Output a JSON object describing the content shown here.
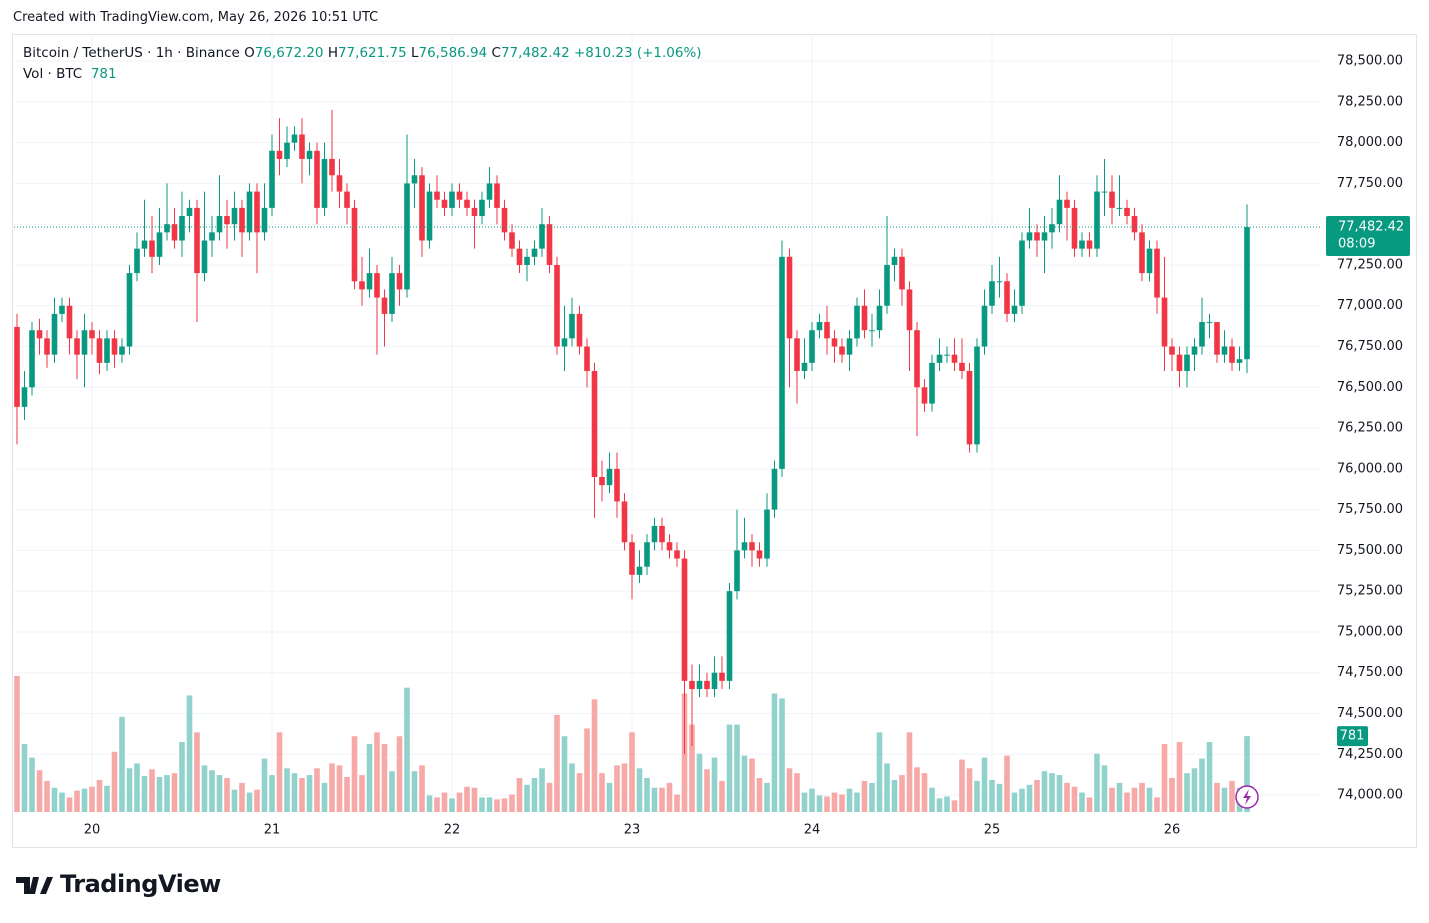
{
  "watermark": "Created with TradingView.com, May 26, 2026 10:51 UTC",
  "brand": "TradingView",
  "chart_data": {
    "type": "candlestick",
    "symbol": "Bitcoin / TetherUS · 1h · Binance",
    "ohlc_legend": [
      {
        "prefix": "O",
        "value": 76672.2,
        "label": "76,672.20"
      },
      {
        "prefix": "H",
        "value": 77621.75,
        "label": "77,621.75"
      },
      {
        "prefix": "L",
        "value": 76586.94,
        "label": "76,586.94"
      },
      {
        "prefix": "C",
        "value": 77482.42,
        "label": "77,482.42"
      }
    ],
    "change": {
      "value": 810.23,
      "label": "+810.23 (+1.06%)"
    },
    "volume_legend": "Vol · BTC",
    "last_price": {
      "value": 77482.42,
      "label": "77,482.42"
    },
    "countdown": "08:09",
    "up_color": "#089981",
    "down_color": "#f23645",
    "volume_up_color": "#92d2cc",
    "volume_down_color": "#f7a9a7",
    "grid": true,
    "ylim": [
      73896,
      78660
    ],
    "yticks": [
      {
        "value": 74000,
        "label": "74,000.00"
      },
      {
        "value": 74250,
        "label": "74,250.00"
      },
      {
        "value": 74500,
        "label": "74,500.00"
      },
      {
        "value": 74750,
        "label": "74,750.00"
      },
      {
        "value": 75000,
        "label": "75,000.00"
      },
      {
        "value": 75250,
        "label": "75,250.00"
      },
      {
        "value": 75500,
        "label": "75,500.00"
      },
      {
        "value": 75750,
        "label": "75,750.00"
      },
      {
        "value": 76000,
        "label": "76,000.00"
      },
      {
        "value": 76250,
        "label": "76,250.00"
      },
      {
        "value": 76500,
        "label": "76,500.00"
      },
      {
        "value": 76750,
        "label": "76,750.00"
      },
      {
        "value": 77000,
        "label": "77,000.00"
      },
      {
        "value": 77250,
        "label": "77,250.00"
      },
      {
        "value": 77500,
        "label": "77,500.00"
      },
      {
        "value": 77750,
        "label": "77,750.00"
      },
      {
        "value": 78000,
        "label": "78,000.00"
      },
      {
        "value": 78250,
        "label": "78,250.00"
      },
      {
        "value": 78500,
        "label": "78,500.00"
      }
    ],
    "categories": [
      null,
      null,
      null,
      null,
      null,
      null,
      null,
      null,
      null,
      null,
      "20",
      null,
      null,
      null,
      null,
      null,
      null,
      null,
      null,
      null,
      null,
      null,
      null,
      null,
      null,
      null,
      null,
      null,
      null,
      null,
      null,
      null,
      null,
      null,
      "21",
      null,
      null,
      null,
      null,
      null,
      null,
      null,
      null,
      null,
      null,
      null,
      null,
      null,
      null,
      null,
      null,
      null,
      null,
      null,
      null,
      null,
      null,
      null,
      "22",
      null,
      null,
      null,
      null,
      null,
      null,
      null,
      null,
      null,
      null,
      null,
      null,
      null,
      null,
      null,
      null,
      null,
      null,
      null,
      null,
      null,
      null,
      null,
      "23",
      null,
      null,
      null,
      null,
      null,
      null,
      null,
      null,
      null,
      null,
      null,
      null,
      null,
      null,
      null,
      null,
      null,
      null,
      null,
      null,
      null,
      null,
      null,
      "24",
      null,
      null,
      null,
      null,
      null,
      null,
      null,
      null,
      null,
      null,
      null,
      null,
      null,
      null,
      null,
      null,
      null,
      null,
      null,
      null,
      null,
      null,
      null,
      "25",
      null,
      null,
      null,
      null,
      null,
      null,
      null,
      null,
      null,
      null,
      null,
      null,
      null,
      null,
      null,
      null,
      null,
      null,
      null,
      null,
      null,
      null,
      null,
      "26",
      null,
      null,
      null,
      null,
      null,
      null,
      null,
      null,
      null,
      null
    ],
    "open": [
      76870,
      76380,
      76500,
      76850,
      76800,
      76700,
      76950,
      77000,
      76800,
      76700,
      76850,
      76800,
      76650,
      76800,
      76700,
      76750,
      77200,
      77350,
      77400,
      77300,
      77450,
      77500,
      77400,
      77550,
      77600,
      77200,
      77400,
      77450,
      77550,
      77500,
      77600,
      77450,
      77700,
      77450,
      77600,
      77950,
      77900,
      78000,
      78050,
      77900,
      77950,
      77600,
      77900,
      77800,
      77700,
      77600,
      77150,
      77100,
      77200,
      77050,
      76950,
      77200,
      77100,
      77750,
      77800,
      77400,
      77700,
      77650,
      77600,
      77700,
      77650,
      77600,
      77550,
      77650,
      77750,
      77600,
      77450,
      77350,
      77250,
      77300,
      77350,
      77500,
      77250,
      76750,
      76800,
      76950,
      76750,
      76600,
      75950,
      75900,
      76000,
      75800,
      75550,
      75350,
      75400,
      75550,
      75650,
      75550,
      75500,
      75450,
      74700,
      74650,
      74700,
      74650,
      74750,
      74700,
      75250,
      75500,
      75550,
      75500,
      75450,
      75750,
      76000,
      77300,
      76800,
      76600,
      76650,
      76850,
      76900,
      76800,
      76750,
      76700,
      76800,
      77000,
      76850,
      76850,
      77000,
      77250,
      77300,
      77100,
      76850,
      76500,
      76400,
      76650,
      76700,
      76700,
      76650,
      76600,
      76150,
      76750,
      77000,
      77150,
      77150,
      76950,
      77000,
      77400,
      77450,
      77400,
      77450,
      77500,
      77650,
      77600,
      77350,
      77400,
      77350,
      77700,
      77700,
      77600,
      77600,
      77550,
      77450,
      77200,
      77350,
      77050,
      76750,
      76700,
      76600,
      76700,
      76750,
      76900,
      76900,
      76700,
      76750,
      76650,
      76672.2
    ],
    "high": [
      76950,
      76600,
      76900,
      76920,
      76850,
      77050,
      77050,
      77050,
      76850,
      76950,
      76900,
      76850,
      76850,
      76850,
      76800,
      77250,
      77450,
      77650,
      77550,
      77600,
      77750,
      77600,
      77700,
      77650,
      77650,
      77700,
      77550,
      77800,
      77650,
      77700,
      77650,
      77750,
      77750,
      77750,
      78050,
      78150,
      78100,
      78100,
      78150,
      78000,
      78000,
      78000,
      78200,
      77900,
      77750,
      77650,
      77300,
      77350,
      77250,
      77100,
      77300,
      77250,
      78050,
      77900,
      77850,
      77750,
      77800,
      77700,
      77750,
      77750,
      77700,
      77650,
      77700,
      77850,
      77800,
      77650,
      77500,
      77400,
      77350,
      77400,
      77600,
      77550,
      77300,
      77000,
      77050,
      77000,
      76800,
      76650,
      76050,
      76100,
      76100,
      75850,
      75600,
      75500,
      75600,
      75700,
      75700,
      75600,
      75550,
      75500,
      74800,
      74800,
      74750,
      74850,
      74850,
      75300,
      75750,
      75700,
      75600,
      75550,
      75850,
      76050,
      77400,
      77350,
      76850,
      76800,
      76900,
      76950,
      77000,
      76850,
      76800,
      76850,
      77050,
      77100,
      76950,
      77100,
      77550,
      77350,
      77350,
      77150,
      76900,
      76550,
      76700,
      76800,
      76750,
      76800,
      76800,
      76650,
      76800,
      77100,
      77250,
      77300,
      77200,
      77100,
      77450,
      77600,
      77500,
      77550,
      77600,
      77800,
      77700,
      77650,
      77450,
      77450,
      77800,
      77900,
      77800,
      77800,
      77650,
      77600,
      77500,
      77400,
      77400,
      77300,
      76800,
      76750,
      76750,
      76800,
      77050,
      76950,
      76900,
      76850,
      76800,
      76750,
      77621.75
    ],
    "low": [
      76150,
      76300,
      76450,
      76700,
      76620,
      76650,
      76900,
      76700,
      76550,
      76500,
      76700,
      76580,
      76600,
      76620,
      76650,
      76700,
      77150,
      77300,
      77200,
      77250,
      77400,
      77350,
      77300,
      77450,
      76900,
      77150,
      77300,
      77400,
      77350,
      77400,
      77300,
      77400,
      77200,
      77400,
      77550,
      77800,
      77850,
      77950,
      77750,
      77800,
      77500,
      77550,
      77700,
      77600,
      77500,
      77100,
      77000,
      77050,
      76700,
      76750,
      76900,
      77000,
      77050,
      77600,
      77300,
      77350,
      77600,
      77550,
      77550,
      77600,
      77550,
      77350,
      77500,
      77600,
      77500,
      77400,
      77300,
      77200,
      77150,
      77250,
      77300,
      77200,
      76700,
      76600,
      76750,
      76700,
      76500,
      75700,
      75800,
      75850,
      75700,
      75500,
      75200,
      75300,
      75350,
      75500,
      75500,
      75450,
      75400,
      74250,
      74300,
      74600,
      74600,
      74600,
      74650,
      74650,
      75200,
      75450,
      75400,
      75400,
      75400,
      75700,
      75950,
      76500,
      76400,
      76550,
      76600,
      76800,
      76700,
      76650,
      76650,
      76600,
      76750,
      76800,
      76750,
      76800,
      76950,
      77150,
      77000,
      76600,
      76200,
      76350,
      76350,
      76600,
      76650,
      76600,
      76550,
      76100,
      76100,
      76700,
      76950,
      77050,
      76900,
      76900,
      76950,
      77350,
      77300,
      77200,
      77350,
      77450,
      77400,
      77300,
      77300,
      77300,
      77300,
      77550,
      77500,
      77550,
      77500,
      77400,
      77150,
      77150,
      76950,
      76600,
      76600,
      76500,
      76500,
      76600,
      76700,
      76800,
      76650,
      76650,
      76600,
      76600,
      76586.94
    ],
    "close": [
      76380,
      76500,
      76850,
      76800,
      76700,
      76950,
      77000,
      76800,
      76700,
      76850,
      76800,
      76650,
      76800,
      76700,
      76750,
      77200,
      77350,
      77400,
      77300,
      77450,
      77500,
      77400,
      77550,
      77600,
      77200,
      77400,
      77450,
      77550,
      77500,
      77600,
      77450,
      77700,
      77450,
      77600,
      77950,
      77900,
      78000,
      78050,
      77900,
      77950,
      77600,
      77900,
      77800,
      77700,
      77600,
      77150,
      77100,
      77200,
      77050,
      76950,
      77200,
      77100,
      77750,
      77800,
      77400,
      77700,
      77650,
      77600,
      77700,
      77650,
      77600,
      77550,
      77650,
      77750,
      77600,
      77450,
      77350,
      77250,
      77300,
      77350,
      77500,
      77250,
      76750,
      76800,
      76950,
      76750,
      76600,
      75950,
      75900,
      76000,
      75800,
      75550,
      75350,
      75400,
      75550,
      75650,
      75550,
      75500,
      75450,
      74700,
      74650,
      74700,
      74650,
      74750,
      74700,
      75250,
      75500,
      75550,
      75500,
      75450,
      75750,
      76000,
      77300,
      76800,
      76600,
      76650,
      76850,
      76900,
      76800,
      76750,
      76700,
      76800,
      77000,
      76850,
      76850,
      77000,
      77250,
      77300,
      77100,
      76850,
      76500,
      76400,
      76650,
      76700,
      76700,
      76650,
      76600,
      76150,
      76750,
      77000,
      77150,
      77150,
      76950,
      77000,
      77400,
      77450,
      77400,
      77450,
      77500,
      77650,
      77600,
      77350,
      77400,
      77350,
      77700,
      77700,
      77600,
      77600,
      77550,
      77450,
      77200,
      77350,
      77050,
      76750,
      76700,
      76600,
      76700,
      76750,
      76900,
      76900,
      76700,
      76750,
      76650,
      76672.2,
      77482.42
    ],
    "volume": [
      1400,
      700,
      560,
      430,
      320,
      250,
      200,
      150,
      220,
      240,
      260,
      330,
      270,
      620,
      980,
      450,
      500,
      370,
      440,
      360,
      380,
      400,
      720,
      1200,
      820,
      480,
      430,
      380,
      350,
      230,
      300,
      200,
      230,
      550,
      380,
      820,
      450,
      400,
      350,
      380,
      450,
      300,
      500,
      480,
      360,
      780,
      380,
      700,
      820,
      700,
      420,
      780,
      1280,
      420,
      480,
      170,
      150,
      200,
      140,
      200,
      260,
      250,
      150,
      150,
      130,
      140,
      180,
      350,
      280,
      350,
      450,
      300,
      1000,
      780,
      500,
      400,
      860,
      1160,
      400,
      300,
      480,
      500,
      820,
      450,
      350,
      250,
      250,
      300,
      180,
      1220,
      900,
      600,
      440,
      560,
      320,
      900,
      900,
      580,
      550,
      350,
      300,
      1220,
      1170,
      450,
      400,
      200,
      240,
      170,
      160,
      200,
      180,
      240,
      200,
      320,
      300,
      820,
      500,
      330,
      380,
      820,
      460,
      400,
      250,
      140,
      160,
      120,
      540,
      450,
      320,
      560,
      330,
      290,
      580,
      200,
      240,
      280,
      330,
      420,
      400,
      380,
      300,
      260,
      200,
      150,
      600,
      480,
      250,
      300,
      200,
      250,
      300,
      250,
      150,
      700,
      350,
      720,
      400,
      450,
      550,
      720,
      300,
      250,
      320,
      250,
      781
    ]
  }
}
